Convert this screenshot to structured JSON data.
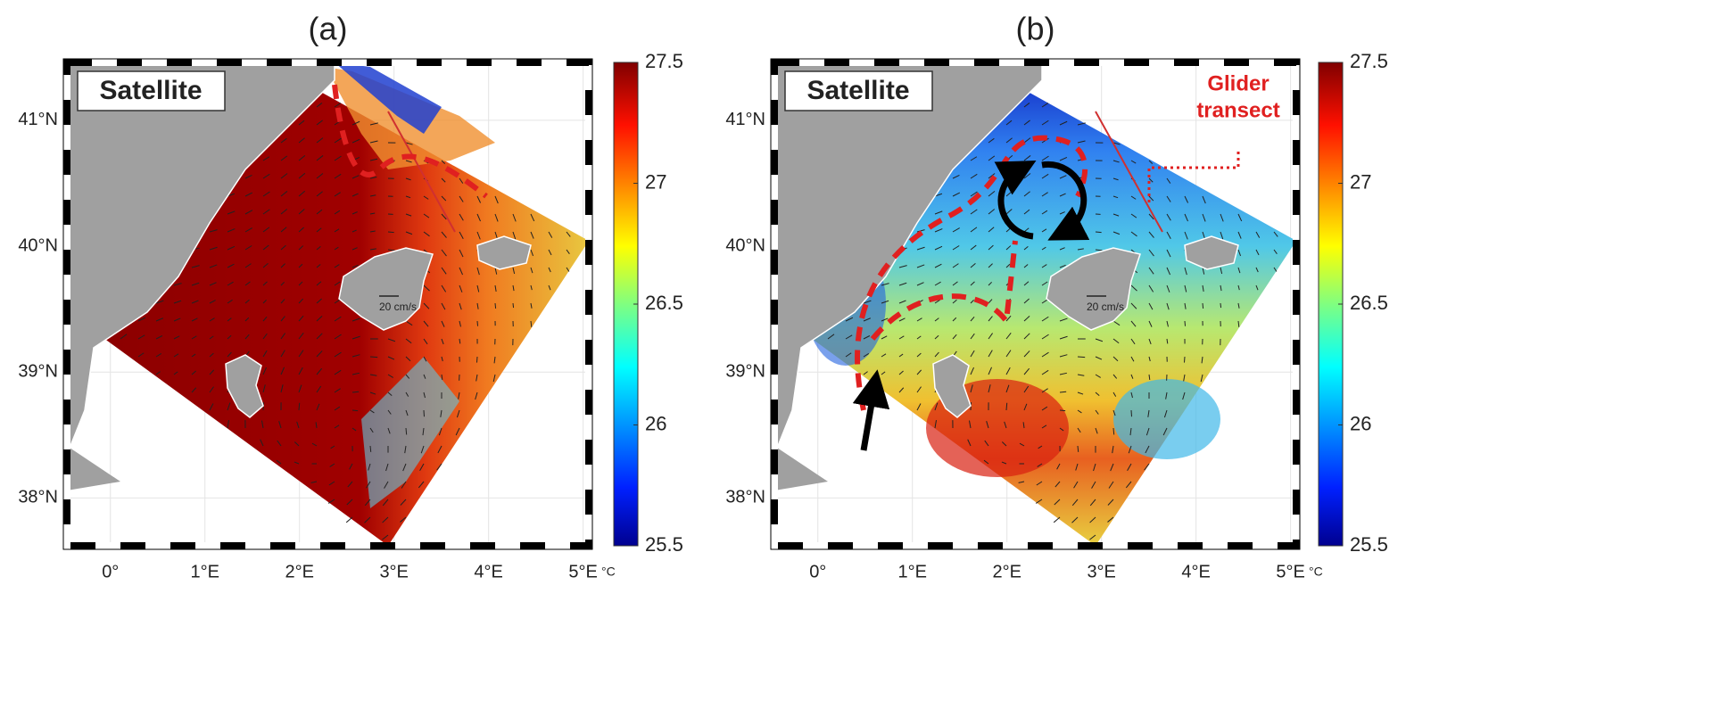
{
  "panels": [
    {
      "title": "(a)",
      "label": "Satellite",
      "scale_label": "20 cm/s",
      "xlim": [
        -0.46,
        5.06
      ],
      "xticks": [
        {
          "value": 0,
          "label": "0°"
        },
        {
          "value": 1,
          "label": "1°E"
        },
        {
          "value": 2,
          "label": "2°E"
        },
        {
          "value": 3,
          "label": "3°E"
        },
        {
          "value": 4,
          "label": "4°E"
        },
        {
          "value": 5,
          "label": "5°E"
        }
      ],
      "ylim": [
        37.62,
        41.46
      ],
      "yticks": [
        {
          "value": 38,
          "label": "38°N"
        },
        {
          "value": 39,
          "label": "39°N"
        },
        {
          "value": 40,
          "label": "40°N"
        },
        {
          "value": 41,
          "label": "41°N"
        }
      ],
      "colorbar": {
        "range": [
          25.5,
          27.5
        ],
        "ticks": [
          25.5,
          26,
          26.5,
          27,
          27.5
        ],
        "unit": "°C"
      }
    },
    {
      "title": "(b)",
      "label": "Satellite",
      "scale_label": "20 cm/s",
      "annotation_lines": [
        "Glider",
        "transect"
      ],
      "xlim": [
        -0.46,
        5.06
      ],
      "xticks": [
        {
          "value": 0,
          "label": "0°"
        },
        {
          "value": 1,
          "label": "1°E"
        },
        {
          "value": 2,
          "label": "2°E"
        },
        {
          "value": 3,
          "label": "3°E"
        },
        {
          "value": 4,
          "label": "4°E"
        },
        {
          "value": 5,
          "label": "5°E"
        }
      ],
      "ylim": [
        37.62,
        41.46
      ],
      "yticks": [
        {
          "value": 38,
          "label": "38°N"
        },
        {
          "value": 39,
          "label": "39°N"
        },
        {
          "value": 40,
          "label": "40°N"
        },
        {
          "value": 41,
          "label": "41°N"
        }
      ],
      "colorbar": {
        "range": [
          25.5,
          27.5
        ],
        "ticks": [
          25.5,
          26,
          26.5,
          27,
          27.5
        ],
        "unit": "°C"
      }
    }
  ]
}
